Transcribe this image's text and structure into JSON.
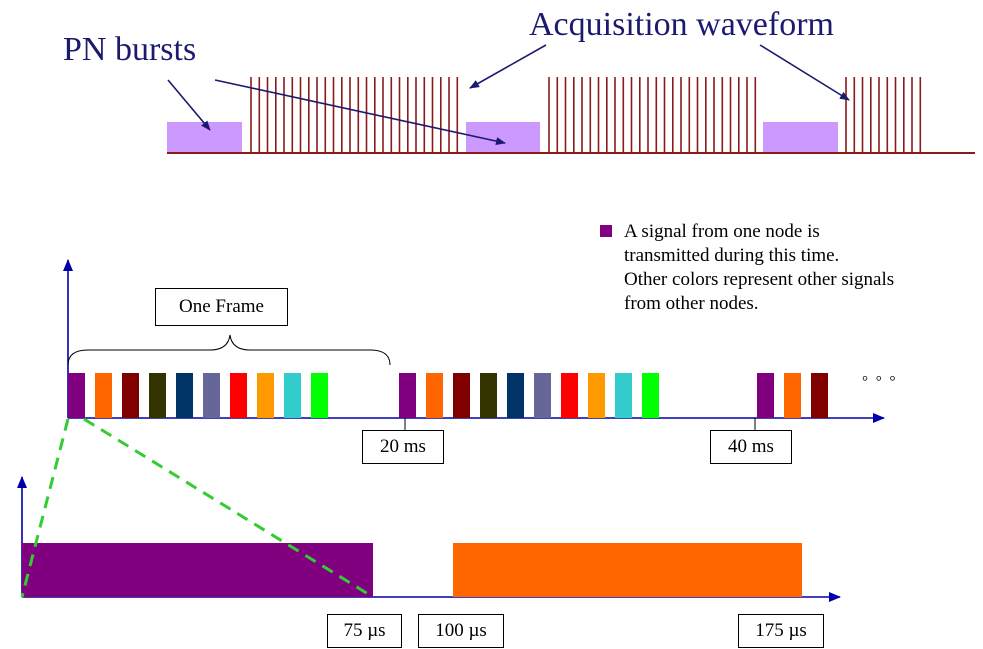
{
  "titles": {
    "pn_bursts": "PN bursts",
    "acquisition_waveform": "Acquisition waveform"
  },
  "frame_label": "One Frame",
  "time_labels": {
    "t20": "20 ms",
    "t40": "40 ms",
    "t75": "75 µs",
    "t100": "100 µs",
    "t175": "175 µs"
  },
  "ellipsis": "° ° °",
  "legend": {
    "lines": [
      "A signal from one node is",
      "transmitted during this time.",
      "Other colors represent other signals",
      "from other nodes."
    ]
  },
  "colors": {
    "navy": "#1a1a6e",
    "pn_burst": "#cc99ff",
    "waveform": "#8b1a1a",
    "purple": "#800080",
    "orange": "#ff6600",
    "dashed": "#33cc33",
    "slots": [
      "#800080",
      "#ff6600",
      "#800000",
      "#333300",
      "#003366",
      "#666699",
      "#ff0000",
      "#ff9900",
      "#33cccc",
      "#00ff00"
    ]
  },
  "frames": [
    {
      "slot_count": 10
    },
    {
      "slot_count": 10
    },
    {
      "slot_count": 3
    }
  ]
}
